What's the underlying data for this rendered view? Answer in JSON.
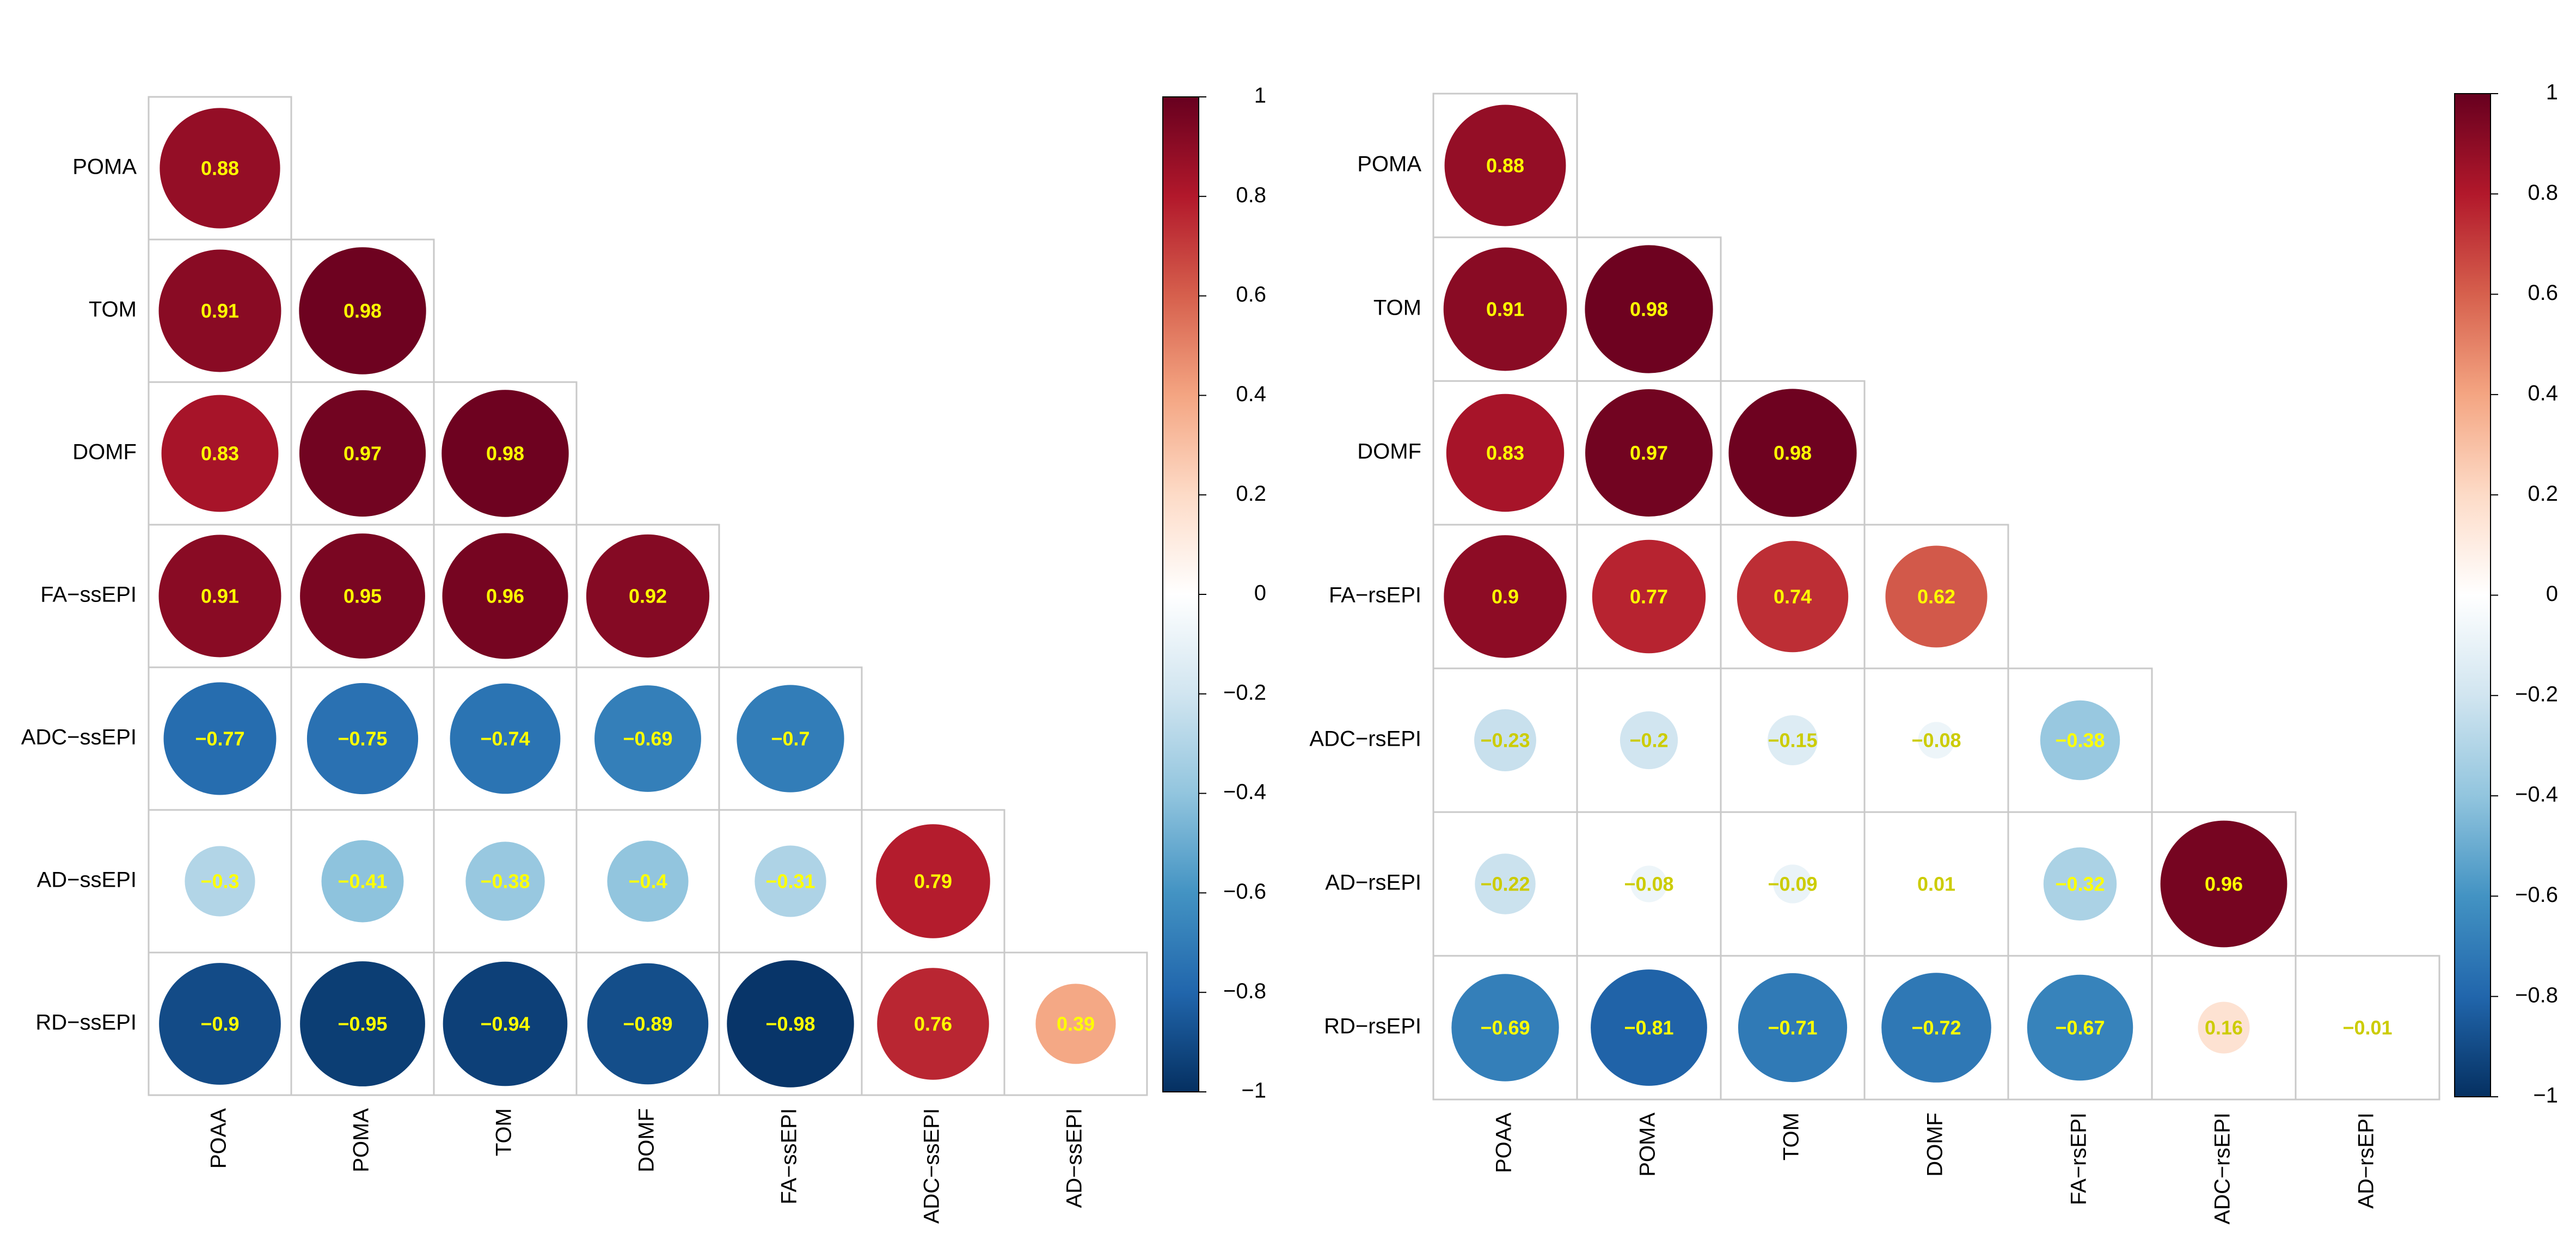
{
  "chart_data": [
    {
      "type": "heatmap",
      "style": "lower-triangular correlation matrix with circle markers",
      "row_labels": [
        "POMA",
        "TOM",
        "DOMF",
        "FA−ssEPI",
        "ADC−ssEPI",
        "AD−ssEPI",
        "RD−ssEPI"
      ],
      "col_labels": [
        "POAA",
        "POMA",
        "TOM",
        "DOMF",
        "FA−ssEPI",
        "ADC−ssEPI",
        "AD−ssEPI"
      ],
      "values": [
        [
          0.88
        ],
        [
          0.91,
          0.98
        ],
        [
          0.83,
          0.97,
          0.98
        ],
        [
          0.91,
          0.95,
          0.96,
          0.92
        ],
        [
          -0.77,
          -0.75,
          -0.74,
          -0.69,
          -0.7
        ],
        [
          -0.3,
          -0.41,
          -0.38,
          -0.4,
          -0.31,
          0.79
        ],
        [
          -0.9,
          -0.95,
          -0.94,
          -0.89,
          -0.98,
          0.76,
          0.39
        ]
      ],
      "value_labels": [
        [
          "0.88"
        ],
        [
          "0.91",
          "0.98"
        ],
        [
          "0.83",
          "0.97",
          "0.98"
        ],
        [
          "0.91",
          "0.95",
          "0.96",
          "0.92"
        ],
        [
          "−0.77",
          "−0.75",
          "−0.74",
          "−0.69",
          "−0.7"
        ],
        [
          "−0.3",
          "−0.41",
          "−0.38",
          "−0.4",
          "−0.31",
          "0.79"
        ],
        [
          "−0.9",
          "−0.95",
          "−0.94",
          "−0.89",
          "−0.98",
          "0.76",
          "0.39"
        ]
      ],
      "colorbar": {
        "range": [
          -1,
          1
        ],
        "ticks": [
          1,
          0.8,
          0.6,
          0.4,
          0.2,
          0,
          -0.2,
          -0.4,
          -0.6,
          -0.8,
          -1
        ],
        "tick_labels": [
          "1",
          "0.8",
          "0.6",
          "0.4",
          "0.2",
          "0",
          "−0.2",
          "−0.4",
          "−0.6",
          "−0.8",
          "−1"
        ]
      }
    },
    {
      "type": "heatmap",
      "style": "lower-triangular correlation matrix with circle markers",
      "row_labels": [
        "POMA",
        "TOM",
        "DOMF",
        "FA−rsEPI",
        "ADC−rsEPI",
        "AD−rsEPI",
        "RD−rsEPI"
      ],
      "col_labels": [
        "POAA",
        "POMA",
        "TOM",
        "DOMF",
        "FA−rsEPI",
        "ADC−rsEPI",
        "AD−rsEPI"
      ],
      "values": [
        [
          0.88
        ],
        [
          0.91,
          0.98
        ],
        [
          0.83,
          0.97,
          0.98
        ],
        [
          0.9,
          0.77,
          0.74,
          0.62
        ],
        [
          -0.23,
          -0.2,
          -0.15,
          -0.08,
          -0.38
        ],
        [
          -0.22,
          -0.08,
          -0.09,
          0.01,
          -0.32,
          0.96
        ],
        [
          -0.69,
          -0.81,
          -0.71,
          -0.72,
          -0.67,
          0.16,
          -0.01
        ]
      ],
      "value_labels": [
        [
          "0.88"
        ],
        [
          "0.91",
          "0.98"
        ],
        [
          "0.83",
          "0.97",
          "0.98"
        ],
        [
          "0.9",
          "0.77",
          "0.74",
          "0.62"
        ],
        [
          "−0.23",
          "−0.2",
          "−0.15",
          "−0.08",
          "−0.38"
        ],
        [
          "−0.22",
          "−0.08",
          "−0.09",
          "0.01",
          "−0.32",
          "0.96"
        ],
        [
          "−0.69",
          "−0.81",
          "−0.71",
          "−0.72",
          "−0.67",
          "0.16",
          "−0.01"
        ]
      ],
      "colorbar": {
        "range": [
          -1,
          1
        ],
        "ticks": [
          1,
          0.8,
          0.6,
          0.4,
          0.2,
          0,
          -0.2,
          -0.4,
          -0.6,
          -0.8,
          -1
        ],
        "tick_labels": [
          "1",
          "0.8",
          "0.6",
          "0.4",
          "0.2",
          "0",
          "−0.2",
          "−0.4",
          "−0.6",
          "−0.8",
          "−1"
        ]
      }
    }
  ],
  "colors": {
    "palette": [
      "#053061",
      "#2166AC",
      "#4393C3",
      "#92C5DE",
      "#D1E5F0",
      "#FFFFFF",
      "#FDDBC7",
      "#F4A582",
      "#D6604D",
      "#B2182B",
      "#67001F"
    ],
    "text_dark_bg": "#FFFF00",
    "text_light_bg": "#CCCC00",
    "grid": "#C9C9C9"
  }
}
